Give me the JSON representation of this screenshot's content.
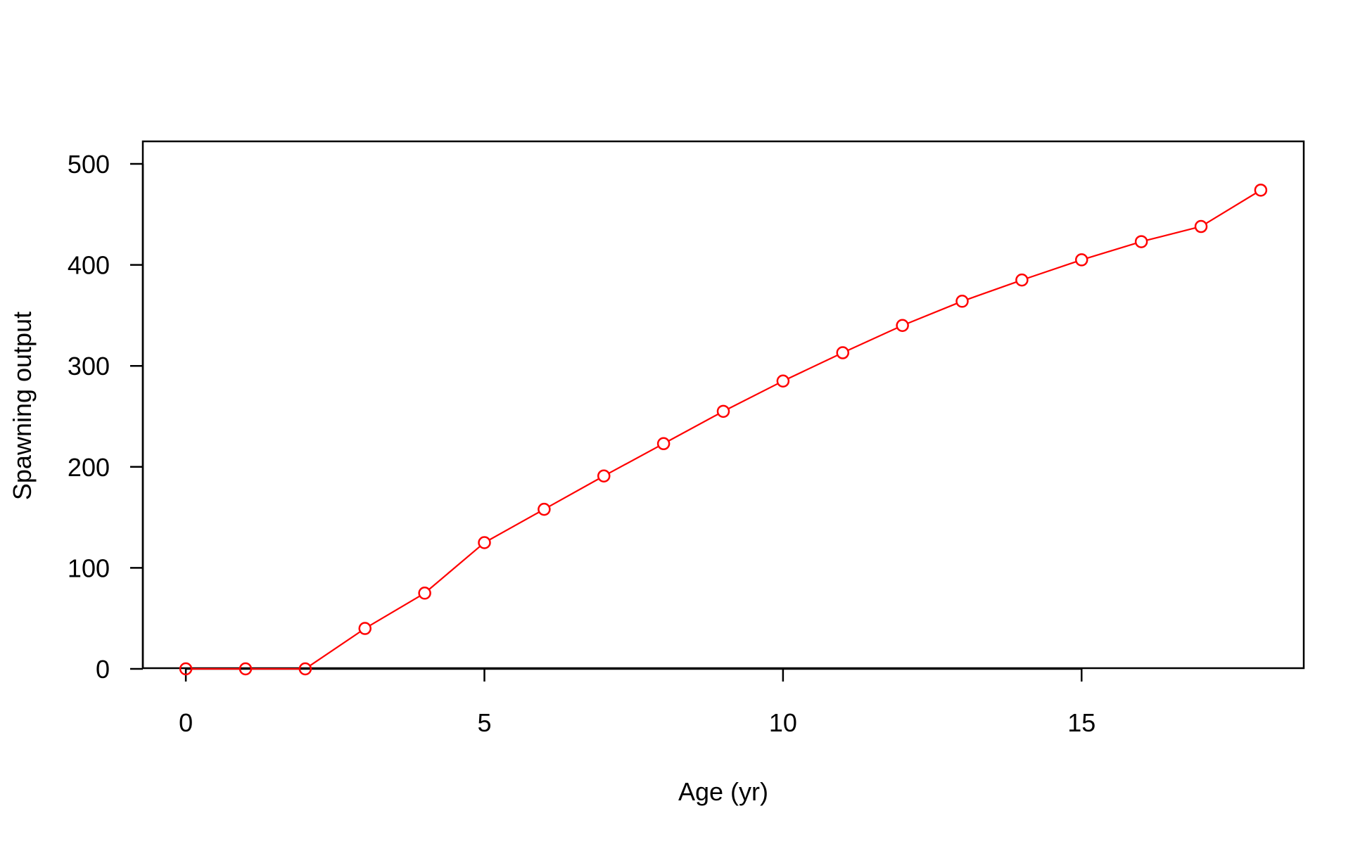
{
  "chart_data": {
    "type": "line",
    "title": "",
    "xlabel": "Age (yr)",
    "ylabel": "Spawning output",
    "xlim": [
      -0.72,
      18.72
    ],
    "ylim": [
      0,
      500
    ],
    "x_ticks": [
      0,
      5,
      10,
      15
    ],
    "y_ticks": [
      0,
      100,
      200,
      300,
      400,
      500
    ],
    "grid": false,
    "legend": "none",
    "series": [
      {
        "color": "#ff0000",
        "marker": "open-circle",
        "x": [
          0,
          1,
          2,
          3,
          4,
          5,
          6,
          7,
          8,
          9,
          10,
          11,
          12,
          13,
          14,
          15,
          16,
          17,
          18
        ],
        "y": [
          0,
          0,
          0,
          40,
          75,
          125,
          158,
          191,
          223,
          255,
          285,
          313,
          340,
          364,
          385,
          405,
          423,
          438,
          474
        ]
      }
    ]
  }
}
